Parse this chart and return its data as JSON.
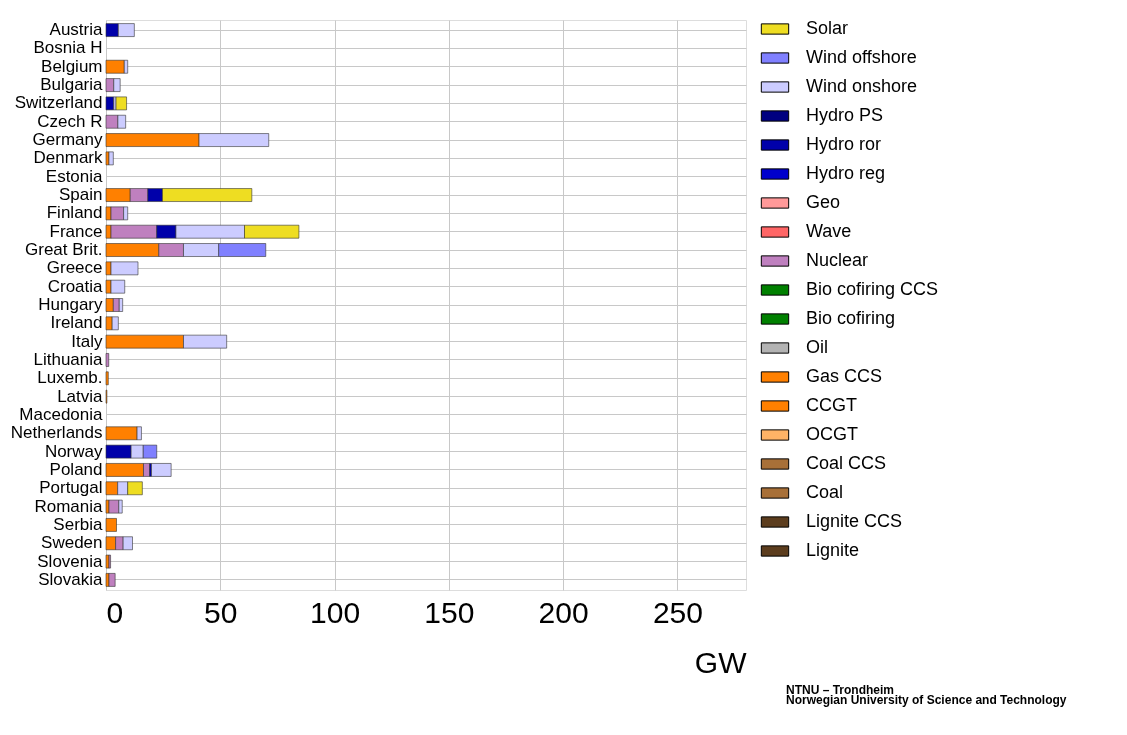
{
  "chart_data": {
    "type": "bar",
    "orientation": "horizontal",
    "stacked": true,
    "categories": [
      "Austria",
      "Bosnia H",
      "Belgium",
      "Bulgaria",
      "Switzerland",
      "Czech R",
      "Germany",
      "Denmark",
      "Estonia",
      "Spain",
      "Finland",
      "France",
      "Great Brit.",
      "Greece",
      "Croatia",
      "Hungary",
      "Ireland",
      "Italy",
      "Lithuania",
      "Luxemb.",
      "Latvia",
      "Macedonia",
      "Netherlands",
      "Norway",
      "Poland",
      "Portugal",
      "Romania",
      "Serbia",
      "Sweden",
      "Slovenia",
      "Slovakia"
    ],
    "series": [
      {
        "name": "Lignite",
        "color": "#5c3d1e",
        "values": [
          null,
          null,
          null,
          null,
          null,
          null,
          null,
          null,
          null,
          null,
          null,
          null,
          null,
          null,
          null,
          null,
          null,
          null,
          null,
          null,
          null,
          null,
          null,
          null,
          null,
          null,
          null,
          null,
          null,
          null,
          null
        ]
      },
      {
        "name": "Lignite CCS",
        "color": "#5c3d1e",
        "values": [
          null,
          null,
          null,
          null,
          null,
          null,
          null,
          null,
          null,
          null,
          null,
          null,
          null,
          null,
          null,
          null,
          null,
          null,
          null,
          null,
          null,
          null,
          null,
          null,
          null,
          null,
          null,
          null,
          null,
          null,
          null
        ]
      },
      {
        "name": "Coal",
        "color": "#a87038",
        "values": [
          null,
          null,
          null,
          null,
          null,
          null,
          null,
          null,
          null,
          null,
          null,
          null,
          null,
          null,
          null,
          null,
          null,
          null,
          null,
          null,
          null,
          null,
          null,
          null,
          null,
          null,
          null,
          null,
          null,
          null,
          null
        ]
      },
      {
        "name": "Coal CCS",
        "color": "#a87038",
        "values": [
          null,
          null,
          null,
          null,
          null,
          null,
          null,
          null,
          null,
          null,
          null,
          null,
          null,
          null,
          null,
          null,
          null,
          null,
          null,
          null,
          null,
          null,
          null,
          null,
          null,
          null,
          null,
          null,
          null,
          null,
          null
        ]
      },
      {
        "name": "OCGT",
        "color": "#ffb366",
        "values": [
          null,
          null,
          null,
          null,
          null,
          null,
          null,
          null,
          null,
          null,
          null,
          null,
          null,
          null,
          null,
          null,
          null,
          null,
          null,
          null,
          null,
          null,
          null,
          null,
          null,
          null,
          null,
          null,
          null,
          null,
          null
        ]
      },
      {
        "name": "CCGT",
        "color": "#ff8000",
        "values": [
          null,
          null,
          8,
          null,
          null,
          null,
          40.7,
          1.3,
          null,
          10.6,
          2.2,
          2.2,
          23.1,
          2.2,
          2.2,
          3.2,
          2.7,
          33.9,
          null,
          1.0,
          0.4,
          null,
          13.6,
          null,
          16.4,
          5.1,
          1.3,
          4.6,
          4.2,
          1.3,
          1.3
        ]
      },
      {
        "name": "Gas CCS",
        "color": "#ff8000",
        "values": [
          null,
          null,
          null,
          null,
          null,
          null,
          null,
          null,
          null,
          null,
          null,
          null,
          null,
          null,
          null,
          null,
          null,
          null,
          null,
          null,
          null,
          null,
          null,
          null,
          null,
          null,
          null,
          null,
          null,
          null,
          null
        ]
      },
      {
        "name": "Oil",
        "color": "#b3b3b3",
        "values": [
          null,
          null,
          null,
          null,
          null,
          null,
          null,
          null,
          null,
          null,
          null,
          null,
          null,
          null,
          null,
          null,
          null,
          null,
          null,
          null,
          null,
          null,
          null,
          null,
          null,
          null,
          null,
          null,
          null,
          null,
          null
        ]
      },
      {
        "name": "Bio cofiring",
        "color": "#008000",
        "values": [
          null,
          null,
          null,
          null,
          null,
          null,
          null,
          null,
          null,
          null,
          null,
          null,
          null,
          null,
          null,
          null,
          null,
          null,
          null,
          null,
          null,
          null,
          null,
          null,
          null,
          null,
          null,
          null,
          null,
          null,
          null
        ]
      },
      {
        "name": "Bio cofiring CCS",
        "color": "#008000",
        "values": [
          null,
          null,
          null,
          null,
          null,
          null,
          null,
          null,
          null,
          null,
          null,
          null,
          null,
          null,
          null,
          null,
          null,
          null,
          null,
          null,
          null,
          null,
          null,
          null,
          null,
          null,
          null,
          null,
          null,
          null,
          null
        ]
      },
      {
        "name": "Nuclear",
        "color": "#bf80bf",
        "values": [
          null,
          null,
          null,
          3.4,
          null,
          5.2,
          null,
          null,
          null,
          7.7,
          5.5,
          20,
          10.8,
          null,
          null,
          2.6,
          null,
          null,
          1.2,
          null,
          null,
          null,
          null,
          null,
          2.7,
          null,
          4.3,
          null,
          3.3,
          0.7,
          2.7
        ]
      },
      {
        "name": "Wave",
        "color": "#ff6666",
        "values": [
          null,
          null,
          null,
          null,
          null,
          null,
          null,
          null,
          null,
          null,
          null,
          null,
          null,
          null,
          null,
          null,
          null,
          null,
          null,
          null,
          null,
          null,
          null,
          null,
          null,
          null,
          null,
          null,
          null,
          null,
          null
        ]
      },
      {
        "name": "Geo",
        "color": "#ff9999",
        "values": [
          null,
          null,
          null,
          null,
          null,
          null,
          null,
          null,
          null,
          null,
          null,
          null,
          null,
          null,
          null,
          null,
          null,
          null,
          null,
          null,
          null,
          null,
          null,
          null,
          null,
          null,
          null,
          null,
          null,
          null,
          null
        ]
      },
      {
        "name": "Hydro reg",
        "color": "#0000cc",
        "values": [
          null,
          null,
          null,
          null,
          null,
          null,
          null,
          null,
          null,
          null,
          null,
          null,
          null,
          null,
          null,
          null,
          null,
          null,
          null,
          null,
          null,
          null,
          null,
          null,
          null,
          null,
          null,
          null,
          null,
          null,
          null
        ]
      },
      {
        "name": "Hydro ror",
        "color": "#0000aa",
        "values": [
          5.4,
          null,
          null,
          null,
          3.4,
          null,
          null,
          null,
          null,
          6.4,
          null,
          8.4,
          null,
          null,
          null,
          null,
          null,
          null,
          null,
          null,
          null,
          null,
          null,
          11,
          0.8,
          null,
          null,
          null,
          null,
          null,
          null
        ]
      },
      {
        "name": "Hydro PS",
        "color": "#000080",
        "values": [
          null,
          null,
          null,
          null,
          null,
          null,
          null,
          null,
          null,
          null,
          null,
          null,
          null,
          null,
          null,
          null,
          null,
          null,
          null,
          null,
          null,
          null,
          null,
          null,
          null,
          null,
          null,
          null,
          null,
          null,
          null
        ]
      },
      {
        "name": "Wind onshore",
        "color": "#ccccff",
        "values": [
          7,
          null,
          1.5,
          2.8,
          1.0,
          3.4,
          30.5,
          1.9,
          null,
          null,
          1.8,
          30,
          15.4,
          11.8,
          6.0,
          1.5,
          2.7,
          18.9,
          null,
          null,
          null,
          null,
          1.9,
          5.3,
          8.6,
          4.4,
          1.5,
          null,
          4.1,
          null,
          null
        ]
      },
      {
        "name": "Wind offshore",
        "color": "#8080ff",
        "values": [
          null,
          null,
          null,
          null,
          null,
          null,
          null,
          null,
          null,
          null,
          null,
          null,
          20.6,
          null,
          null,
          null,
          null,
          null,
          null,
          null,
          null,
          null,
          null,
          5.9,
          null,
          null,
          null,
          null,
          null,
          null,
          null
        ]
      },
      {
        "name": "Solar",
        "color": "#eedd22",
        "values": [
          null,
          null,
          null,
          null,
          4.6,
          null,
          null,
          null,
          null,
          39.1,
          null,
          23.8,
          null,
          null,
          null,
          null,
          null,
          null,
          null,
          null,
          null,
          null,
          null,
          null,
          null,
          6.4,
          null,
          null,
          null,
          null,
          null
        ]
      }
    ],
    "xlabel": "GW",
    "xlim": [
      0,
      280
    ],
    "xticks": [
      0,
      50,
      100,
      150,
      200,
      250
    ],
    "grid": true,
    "legend": "right",
    "annotations": [
      "NTNU – Trondheim",
      "Norwegian University of Science and Technology"
    ]
  }
}
